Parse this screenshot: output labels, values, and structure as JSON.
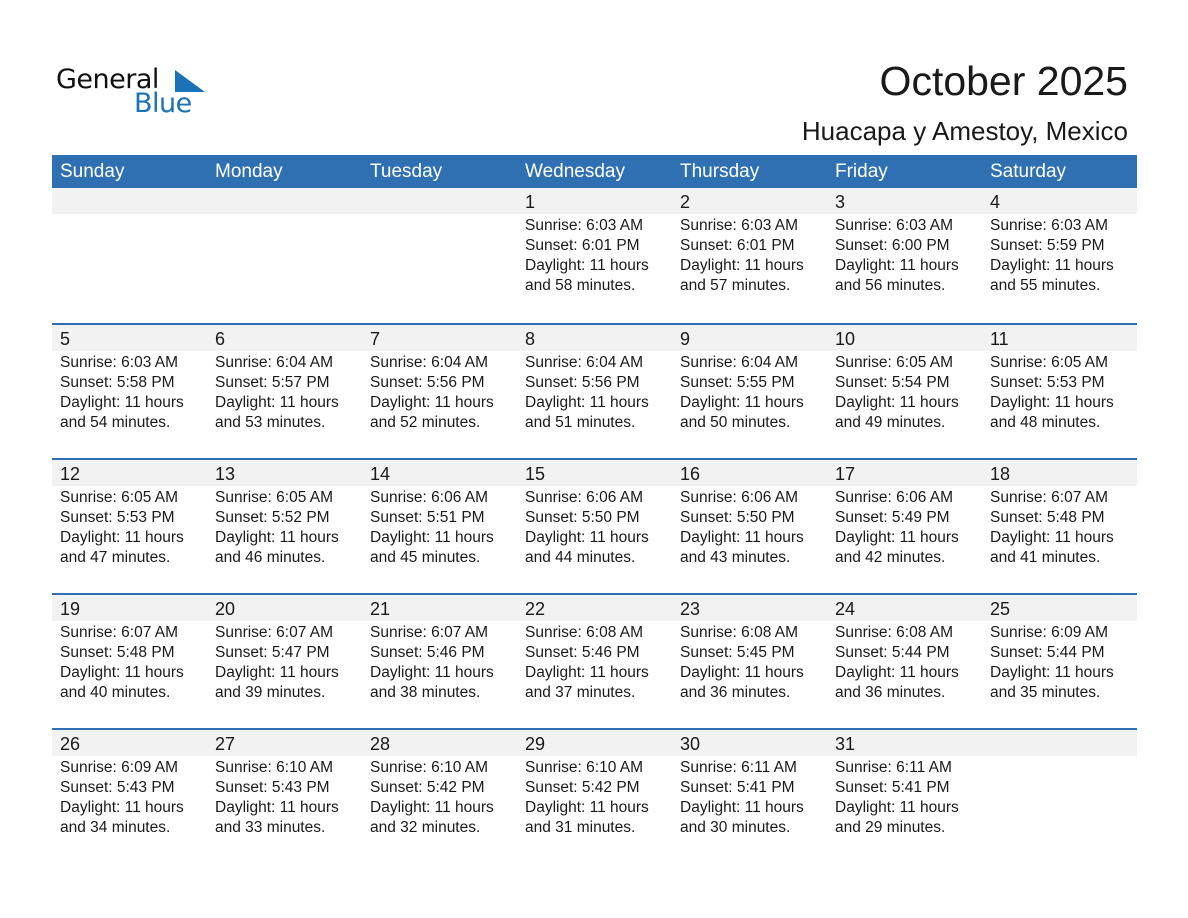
{
  "logo": {
    "word1": "General",
    "word2": "Blue",
    "color": "#1a73b8"
  },
  "title": "October 2025",
  "subtitle": "Huacapa y Amestoy, Mexico",
  "accent": "#2e70b1",
  "weekdays": [
    "Sunday",
    "Monday",
    "Tuesday",
    "Wednesday",
    "Thursday",
    "Friday",
    "Saturday"
  ],
  "weeks": [
    [
      null,
      null,
      null,
      {
        "day": "1",
        "sunrise": "Sunrise: 6:03 AM",
        "sunset": "Sunset: 6:01 PM",
        "daylight1": "Daylight: 11 hours",
        "daylight2": "and 58 minutes."
      },
      {
        "day": "2",
        "sunrise": "Sunrise: 6:03 AM",
        "sunset": "Sunset: 6:01 PM",
        "daylight1": "Daylight: 11 hours",
        "daylight2": "and 57 minutes."
      },
      {
        "day": "3",
        "sunrise": "Sunrise: 6:03 AM",
        "sunset": "Sunset: 6:00 PM",
        "daylight1": "Daylight: 11 hours",
        "daylight2": "and 56 minutes."
      },
      {
        "day": "4",
        "sunrise": "Sunrise: 6:03 AM",
        "sunset": "Sunset: 5:59 PM",
        "daylight1": "Daylight: 11 hours",
        "daylight2": "and 55 minutes."
      }
    ],
    [
      {
        "day": "5",
        "sunrise": "Sunrise: 6:03 AM",
        "sunset": "Sunset: 5:58 PM",
        "daylight1": "Daylight: 11 hours",
        "daylight2": "and 54 minutes."
      },
      {
        "day": "6",
        "sunrise": "Sunrise: 6:04 AM",
        "sunset": "Sunset: 5:57 PM",
        "daylight1": "Daylight: 11 hours",
        "daylight2": "and 53 minutes."
      },
      {
        "day": "7",
        "sunrise": "Sunrise: 6:04 AM",
        "sunset": "Sunset: 5:56 PM",
        "daylight1": "Daylight: 11 hours",
        "daylight2": "and 52 minutes."
      },
      {
        "day": "8",
        "sunrise": "Sunrise: 6:04 AM",
        "sunset": "Sunset: 5:56 PM",
        "daylight1": "Daylight: 11 hours",
        "daylight2": "and 51 minutes."
      },
      {
        "day": "9",
        "sunrise": "Sunrise: 6:04 AM",
        "sunset": "Sunset: 5:55 PM",
        "daylight1": "Daylight: 11 hours",
        "daylight2": "and 50 minutes."
      },
      {
        "day": "10",
        "sunrise": "Sunrise: 6:05 AM",
        "sunset": "Sunset: 5:54 PM",
        "daylight1": "Daylight: 11 hours",
        "daylight2": "and 49 minutes."
      },
      {
        "day": "11",
        "sunrise": "Sunrise: 6:05 AM",
        "sunset": "Sunset: 5:53 PM",
        "daylight1": "Daylight: 11 hours",
        "daylight2": "and 48 minutes."
      }
    ],
    [
      {
        "day": "12",
        "sunrise": "Sunrise: 6:05 AM",
        "sunset": "Sunset: 5:53 PM",
        "daylight1": "Daylight: 11 hours",
        "daylight2": "and 47 minutes."
      },
      {
        "day": "13",
        "sunrise": "Sunrise: 6:05 AM",
        "sunset": "Sunset: 5:52 PM",
        "daylight1": "Daylight: 11 hours",
        "daylight2": "and 46 minutes."
      },
      {
        "day": "14",
        "sunrise": "Sunrise: 6:06 AM",
        "sunset": "Sunset: 5:51 PM",
        "daylight1": "Daylight: 11 hours",
        "daylight2": "and 45 minutes."
      },
      {
        "day": "15",
        "sunrise": "Sunrise: 6:06 AM",
        "sunset": "Sunset: 5:50 PM",
        "daylight1": "Daylight: 11 hours",
        "daylight2": "and 44 minutes."
      },
      {
        "day": "16",
        "sunrise": "Sunrise: 6:06 AM",
        "sunset": "Sunset: 5:50 PM",
        "daylight1": "Daylight: 11 hours",
        "daylight2": "and 43 minutes."
      },
      {
        "day": "17",
        "sunrise": "Sunrise: 6:06 AM",
        "sunset": "Sunset: 5:49 PM",
        "daylight1": "Daylight: 11 hours",
        "daylight2": "and 42 minutes."
      },
      {
        "day": "18",
        "sunrise": "Sunrise: 6:07 AM",
        "sunset": "Sunset: 5:48 PM",
        "daylight1": "Daylight: 11 hours",
        "daylight2": "and 41 minutes."
      }
    ],
    [
      {
        "day": "19",
        "sunrise": "Sunrise: 6:07 AM",
        "sunset": "Sunset: 5:48 PM",
        "daylight1": "Daylight: 11 hours",
        "daylight2": "and 40 minutes."
      },
      {
        "day": "20",
        "sunrise": "Sunrise: 6:07 AM",
        "sunset": "Sunset: 5:47 PM",
        "daylight1": "Daylight: 11 hours",
        "daylight2": "and 39 minutes."
      },
      {
        "day": "21",
        "sunrise": "Sunrise: 6:07 AM",
        "sunset": "Sunset: 5:46 PM",
        "daylight1": "Daylight: 11 hours",
        "daylight2": "and 38 minutes."
      },
      {
        "day": "22",
        "sunrise": "Sunrise: 6:08 AM",
        "sunset": "Sunset: 5:46 PM",
        "daylight1": "Daylight: 11 hours",
        "daylight2": "and 37 minutes."
      },
      {
        "day": "23",
        "sunrise": "Sunrise: 6:08 AM",
        "sunset": "Sunset: 5:45 PM",
        "daylight1": "Daylight: 11 hours",
        "daylight2": "and 36 minutes."
      },
      {
        "day": "24",
        "sunrise": "Sunrise: 6:08 AM",
        "sunset": "Sunset: 5:44 PM",
        "daylight1": "Daylight: 11 hours",
        "daylight2": "and 36 minutes."
      },
      {
        "day": "25",
        "sunrise": "Sunrise: 6:09 AM",
        "sunset": "Sunset: 5:44 PM",
        "daylight1": "Daylight: 11 hours",
        "daylight2": "and 35 minutes."
      }
    ],
    [
      {
        "day": "26",
        "sunrise": "Sunrise: 6:09 AM",
        "sunset": "Sunset: 5:43 PM",
        "daylight1": "Daylight: 11 hours",
        "daylight2": "and 34 minutes."
      },
      {
        "day": "27",
        "sunrise": "Sunrise: 6:10 AM",
        "sunset": "Sunset: 5:43 PM",
        "daylight1": "Daylight: 11 hours",
        "daylight2": "and 33 minutes."
      },
      {
        "day": "28",
        "sunrise": "Sunrise: 6:10 AM",
        "sunset": "Sunset: 5:42 PM",
        "daylight1": "Daylight: 11 hours",
        "daylight2": "and 32 minutes."
      },
      {
        "day": "29",
        "sunrise": "Sunrise: 6:10 AM",
        "sunset": "Sunset: 5:42 PM",
        "daylight1": "Daylight: 11 hours",
        "daylight2": "and 31 minutes."
      },
      {
        "day": "30",
        "sunrise": "Sunrise: 6:11 AM",
        "sunset": "Sunset: 5:41 PM",
        "daylight1": "Daylight: 11 hours",
        "daylight2": "and 30 minutes."
      },
      {
        "day": "31",
        "sunrise": "Sunrise: 6:11 AM",
        "sunset": "Sunset: 5:41 PM",
        "daylight1": "Daylight: 11 hours",
        "daylight2": "and 29 minutes."
      },
      null
    ]
  ]
}
